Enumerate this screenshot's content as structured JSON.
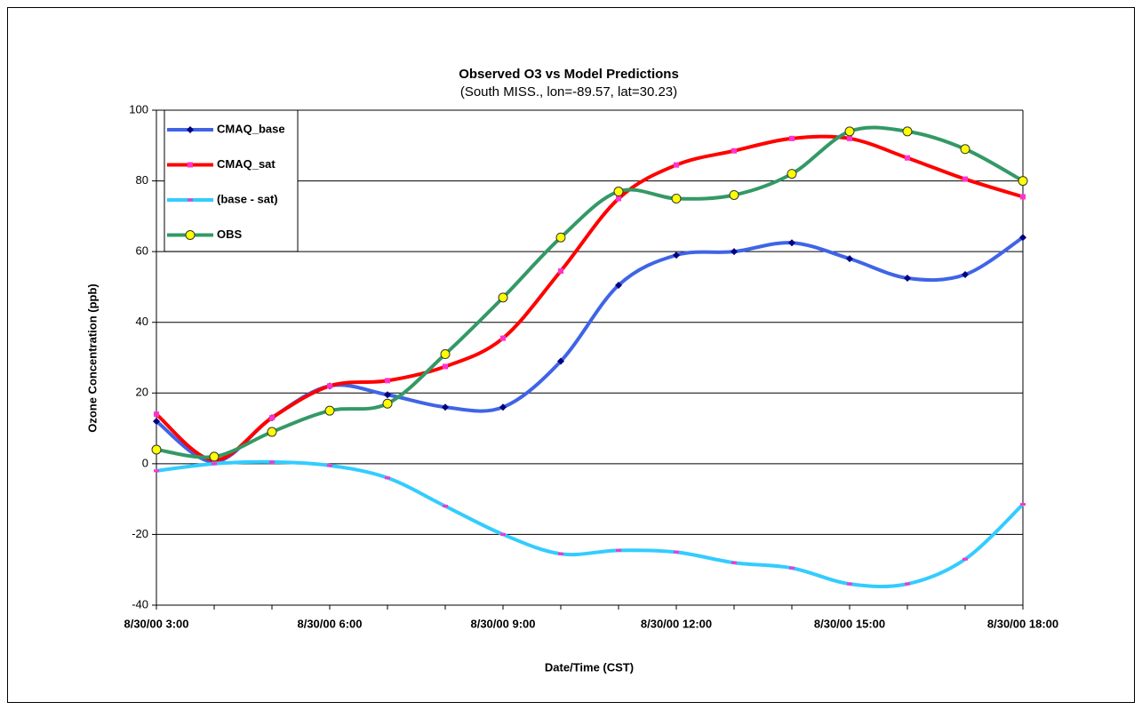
{
  "chart_data": {
    "type": "line",
    "title": "Observed O3 vs Model Predictions",
    "subtitle": "(South MISS., lon=-89.57, lat=30.23)",
    "x_label": "Date/Time (CST)",
    "y_label": "Ozone Concentration (ppb)",
    "categories": [
      "8/30/00 3:00",
      null,
      null,
      "8/30/00 6:00",
      null,
      null,
      "8/30/00 9:00",
      null,
      null,
      "8/30/00 12:00",
      null,
      null,
      "8/30/00 15:00",
      null,
      null,
      "8/30/00 18:00"
    ],
    "ylim": [
      -40,
      100
    ],
    "yticks": [
      -40,
      -20,
      0,
      20,
      40,
      60,
      80,
      100
    ],
    "grid": true,
    "legend": "upper left",
    "series": [
      {
        "name": "CMAQ_base",
        "color": "#3f64e6",
        "marker": "diamond",
        "marker_color": "#000080",
        "values": [
          12,
          0.5,
          13,
          22,
          19.5,
          16,
          16,
          29,
          50.5,
          59,
          60,
          62.5,
          58,
          52.5,
          53.5,
          64
        ]
      },
      {
        "name": "CMAQ_sat",
        "color": "#ff0000",
        "marker": "square",
        "marker_color": "#ff33cc",
        "values": [
          14,
          1,
          13,
          22,
          23.5,
          27.5,
          35.5,
          54.5,
          75,
          84.5,
          88.5,
          92,
          92,
          86.5,
          80.5,
          75.5
        ]
      },
      {
        "name": "(base - sat)",
        "color": "#33ccff",
        "marker": "dash",
        "marker_color": "#ff33cc",
        "values": [
          -2,
          0,
          0.5,
          -0.5,
          -4,
          -12,
          -20,
          -25.5,
          -24.5,
          -25,
          -28,
          -29.5,
          -34,
          -34,
          -27,
          -11.5
        ]
      },
      {
        "name": "OBS",
        "color": "#339966",
        "marker": "circle",
        "marker_color": "#ffff00",
        "values": [
          4,
          2,
          9,
          15,
          17,
          31,
          47,
          64,
          77,
          75,
          76,
          82,
          94,
          94,
          89,
          80
        ]
      }
    ]
  }
}
